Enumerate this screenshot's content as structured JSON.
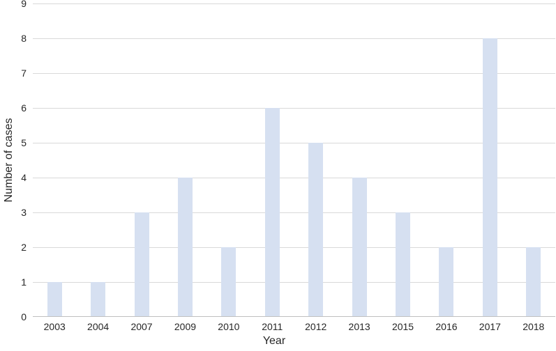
{
  "chart_data": {
    "type": "bar",
    "title": "",
    "xlabel": "Year",
    "ylabel": "Number of cases",
    "categories": [
      "2003",
      "2004",
      "2007",
      "2009",
      "2010",
      "2011",
      "2012",
      "2013",
      "2015",
      "2016",
      "2017",
      "2018"
    ],
    "values": [
      1,
      1,
      3,
      4,
      2,
      6,
      5,
      4,
      3,
      2,
      8,
      2
    ],
    "ylim": [
      0,
      9
    ],
    "y_ticks": [
      0,
      1,
      2,
      3,
      4,
      5,
      6,
      7,
      8,
      9
    ],
    "grid": "horizontal",
    "legend": "none",
    "bar_color": "#d6e0f1",
    "gridline_color": "#d9d9d9",
    "axis_line_color": "#c0c0c0",
    "text_color": "#262626"
  }
}
